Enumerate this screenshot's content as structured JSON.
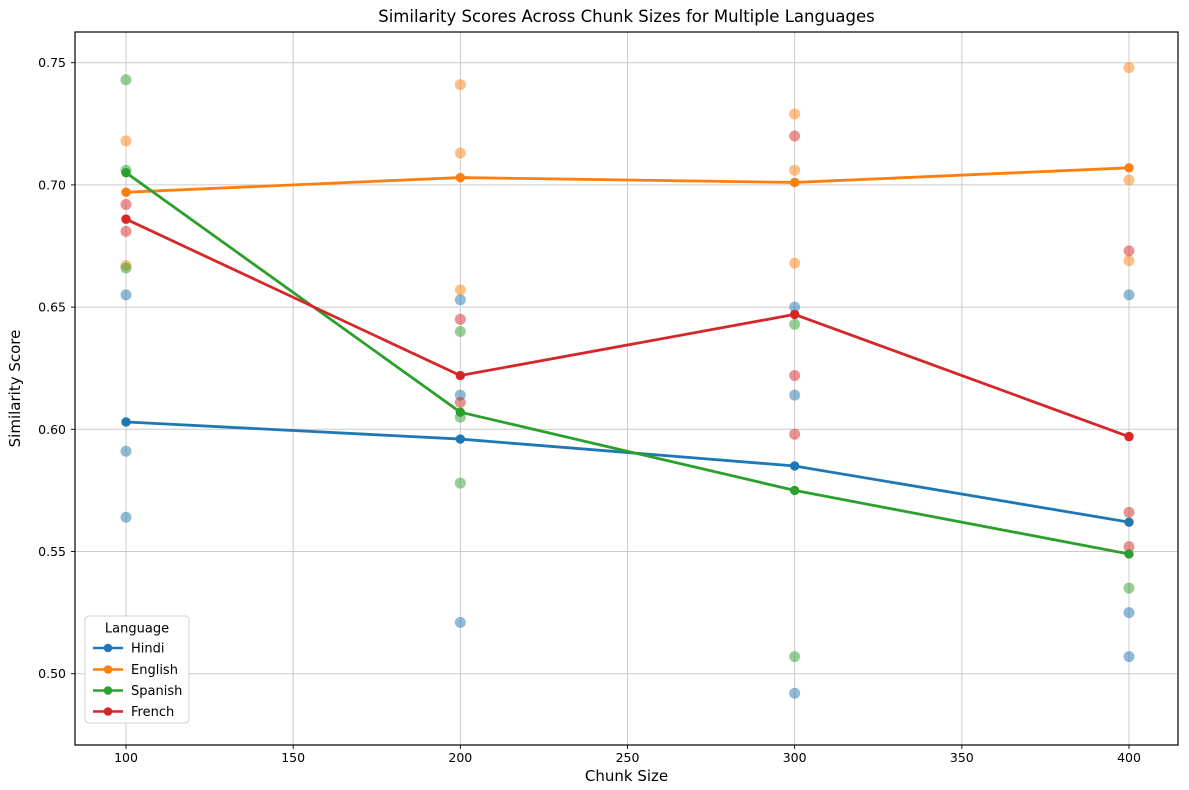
{
  "figure": {
    "title": "Similarity Scores Across Chunk Sizes for Multiple Languages",
    "xlabel": "Chunk Size",
    "ylabel": "Similarity Score"
  },
  "legend": {
    "title": "Language",
    "entries": [
      "Hindi",
      "English",
      "Spanish",
      "French"
    ]
  },
  "colors": {
    "hindi": "#1f77b4",
    "english": "#ff7f0e",
    "spanish": "#2ca02c",
    "french": "#d62728",
    "grid": "#cccccc",
    "spine": "#000000",
    "background": "#ffffff"
  },
  "chart_data": {
    "type": "line",
    "title": "Similarity Scores Across Chunk Sizes for Multiple Languages",
    "xlabel": "Chunk Size",
    "ylabel": "Similarity Score",
    "grid": true,
    "legend_position": "lower left",
    "legend_title": "Language",
    "x": [
      100,
      200,
      300,
      400
    ],
    "x_ticks": [
      100,
      150,
      200,
      250,
      300,
      350,
      400
    ],
    "x_tick_labels": [
      "100",
      "150",
      "200",
      "250",
      "300",
      "350",
      "400"
    ],
    "y_ticks": [
      0.5,
      0.55,
      0.6,
      0.65,
      0.7,
      0.75
    ],
    "y_tick_labels": [
      "0.50",
      "0.55",
      "0.60",
      "0.65",
      "0.70",
      "0.75"
    ],
    "xlim": [
      84.7,
      414.7
    ],
    "ylim": [
      0.471,
      0.763
    ],
    "series": [
      {
        "name": "Hindi",
        "color": "#1f77b4",
        "mean_values": [
          0.603,
          0.596,
          0.585,
          0.562
        ],
        "scatter": [
          [
            0.655,
            0.591,
            0.564
          ],
          [
            0.653,
            0.614,
            0.521
          ],
          [
            0.65,
            0.614,
            0.492
          ],
          [
            0.655,
            0.525,
            0.507
          ]
        ]
      },
      {
        "name": "English",
        "color": "#ff7f0e",
        "mean_values": [
          0.697,
          0.703,
          0.701,
          0.707
        ],
        "scatter": [
          [
            0.718,
            0.667
          ],
          [
            0.741,
            0.713,
            0.657
          ],
          [
            0.729,
            0.706,
            0.668
          ],
          [
            0.748,
            0.702,
            0.669
          ]
        ]
      },
      {
        "name": "Spanish",
        "color": "#2ca02c",
        "mean_values": [
          0.705,
          0.607,
          0.575,
          0.549
        ],
        "scatter": [
          [
            0.743,
            0.706,
            0.666
          ],
          [
            0.64,
            0.605,
            0.578
          ],
          [
            0.643,
            0.507
          ],
          [
            0.535
          ]
        ]
      },
      {
        "name": "French",
        "color": "#d62728",
        "mean_values": [
          0.686,
          0.622,
          0.647,
          0.597
        ],
        "scatter": [
          [
            0.692,
            0.681
          ],
          [
            0.645,
            0.611
          ],
          [
            0.72,
            0.622,
            0.598
          ],
          [
            0.673,
            0.566,
            0.552
          ]
        ]
      }
    ]
  }
}
